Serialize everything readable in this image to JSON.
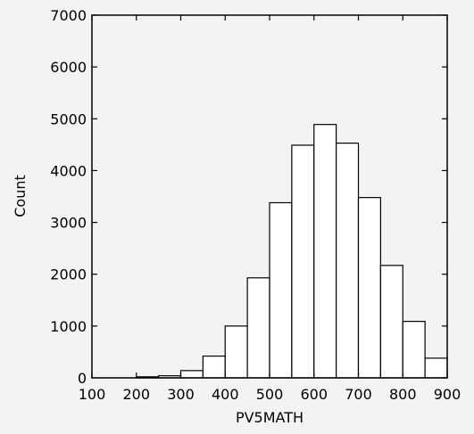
{
  "chart_data": {
    "type": "bar",
    "title": "",
    "xlabel": "PV5MATH",
    "ylabel": "Count",
    "xlim": [
      100,
      900
    ],
    "ylim": [
      0,
      7000
    ],
    "x_ticks": [
      100,
      200,
      300,
      400,
      500,
      600,
      700,
      800,
      900
    ],
    "y_ticks": [
      0,
      1000,
      2000,
      3000,
      4000,
      5000,
      6000,
      7000
    ],
    "bin_width": 50,
    "bins": [
      {
        "start": 200,
        "end": 250,
        "count": 20
      },
      {
        "start": 250,
        "end": 300,
        "count": 40
      },
      {
        "start": 300,
        "end": 350,
        "count": 140
      },
      {
        "start": 350,
        "end": 400,
        "count": 420
      },
      {
        "start": 400,
        "end": 450,
        "count": 1000
      },
      {
        "start": 450,
        "end": 500,
        "count": 1930
      },
      {
        "start": 500,
        "end": 550,
        "count": 3380
      },
      {
        "start": 550,
        "end": 600,
        "count": 4490
      },
      {
        "start": 600,
        "end": 650,
        "count": 4890
      },
      {
        "start": 650,
        "end": 700,
        "count": 4530
      },
      {
        "start": 700,
        "end": 750,
        "count": 3480
      },
      {
        "start": 750,
        "end": 800,
        "count": 2170
      },
      {
        "start": 800,
        "end": 850,
        "count": 1090
      },
      {
        "start": 850,
        "end": 900,
        "count": 380
      }
    ],
    "grid": false,
    "bar_fill": "#ffffff",
    "bar_stroke": "#000000"
  }
}
